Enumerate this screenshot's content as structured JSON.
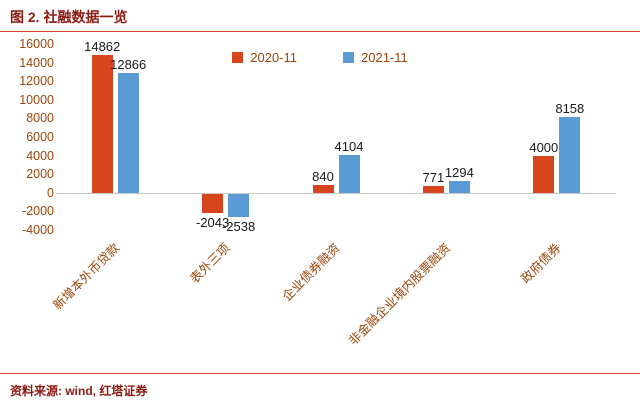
{
  "header": {
    "title": "图 2. 社融数据一览"
  },
  "footer": {
    "source": "资料来源: wind, 红塔证券"
  },
  "colors": {
    "title": "#8b1a10",
    "rule": "#dd4434",
    "axis_label": "#9c4408",
    "value_label": "#1a1a1a",
    "zero_line": "#c9c9c9",
    "source_text": "#8b1a10"
  },
  "chart_data": {
    "type": "bar",
    "title": "图 2. 社融数据一览",
    "categories": [
      "新增本外币贷款",
      "表外三项",
      "企业债券融资",
      "非金融企业境内股票融资",
      "政府债券"
    ],
    "series": [
      {
        "name": "2020-11",
        "color": "#d6451d",
        "values": [
          14862,
          -2043,
          840,
          771,
          4000
        ]
      },
      {
        "name": "2021-11",
        "color": "#5b9bd5",
        "values": [
          12866,
          -2538,
          4104,
          1294,
          8158
        ]
      }
    ],
    "xlabel": "",
    "ylabel": "",
    "ylim": [
      -4000,
      16000
    ],
    "ytick_step": 2000,
    "grid": false,
    "legend_position": "top-center",
    "value_labels_shown": true
  }
}
